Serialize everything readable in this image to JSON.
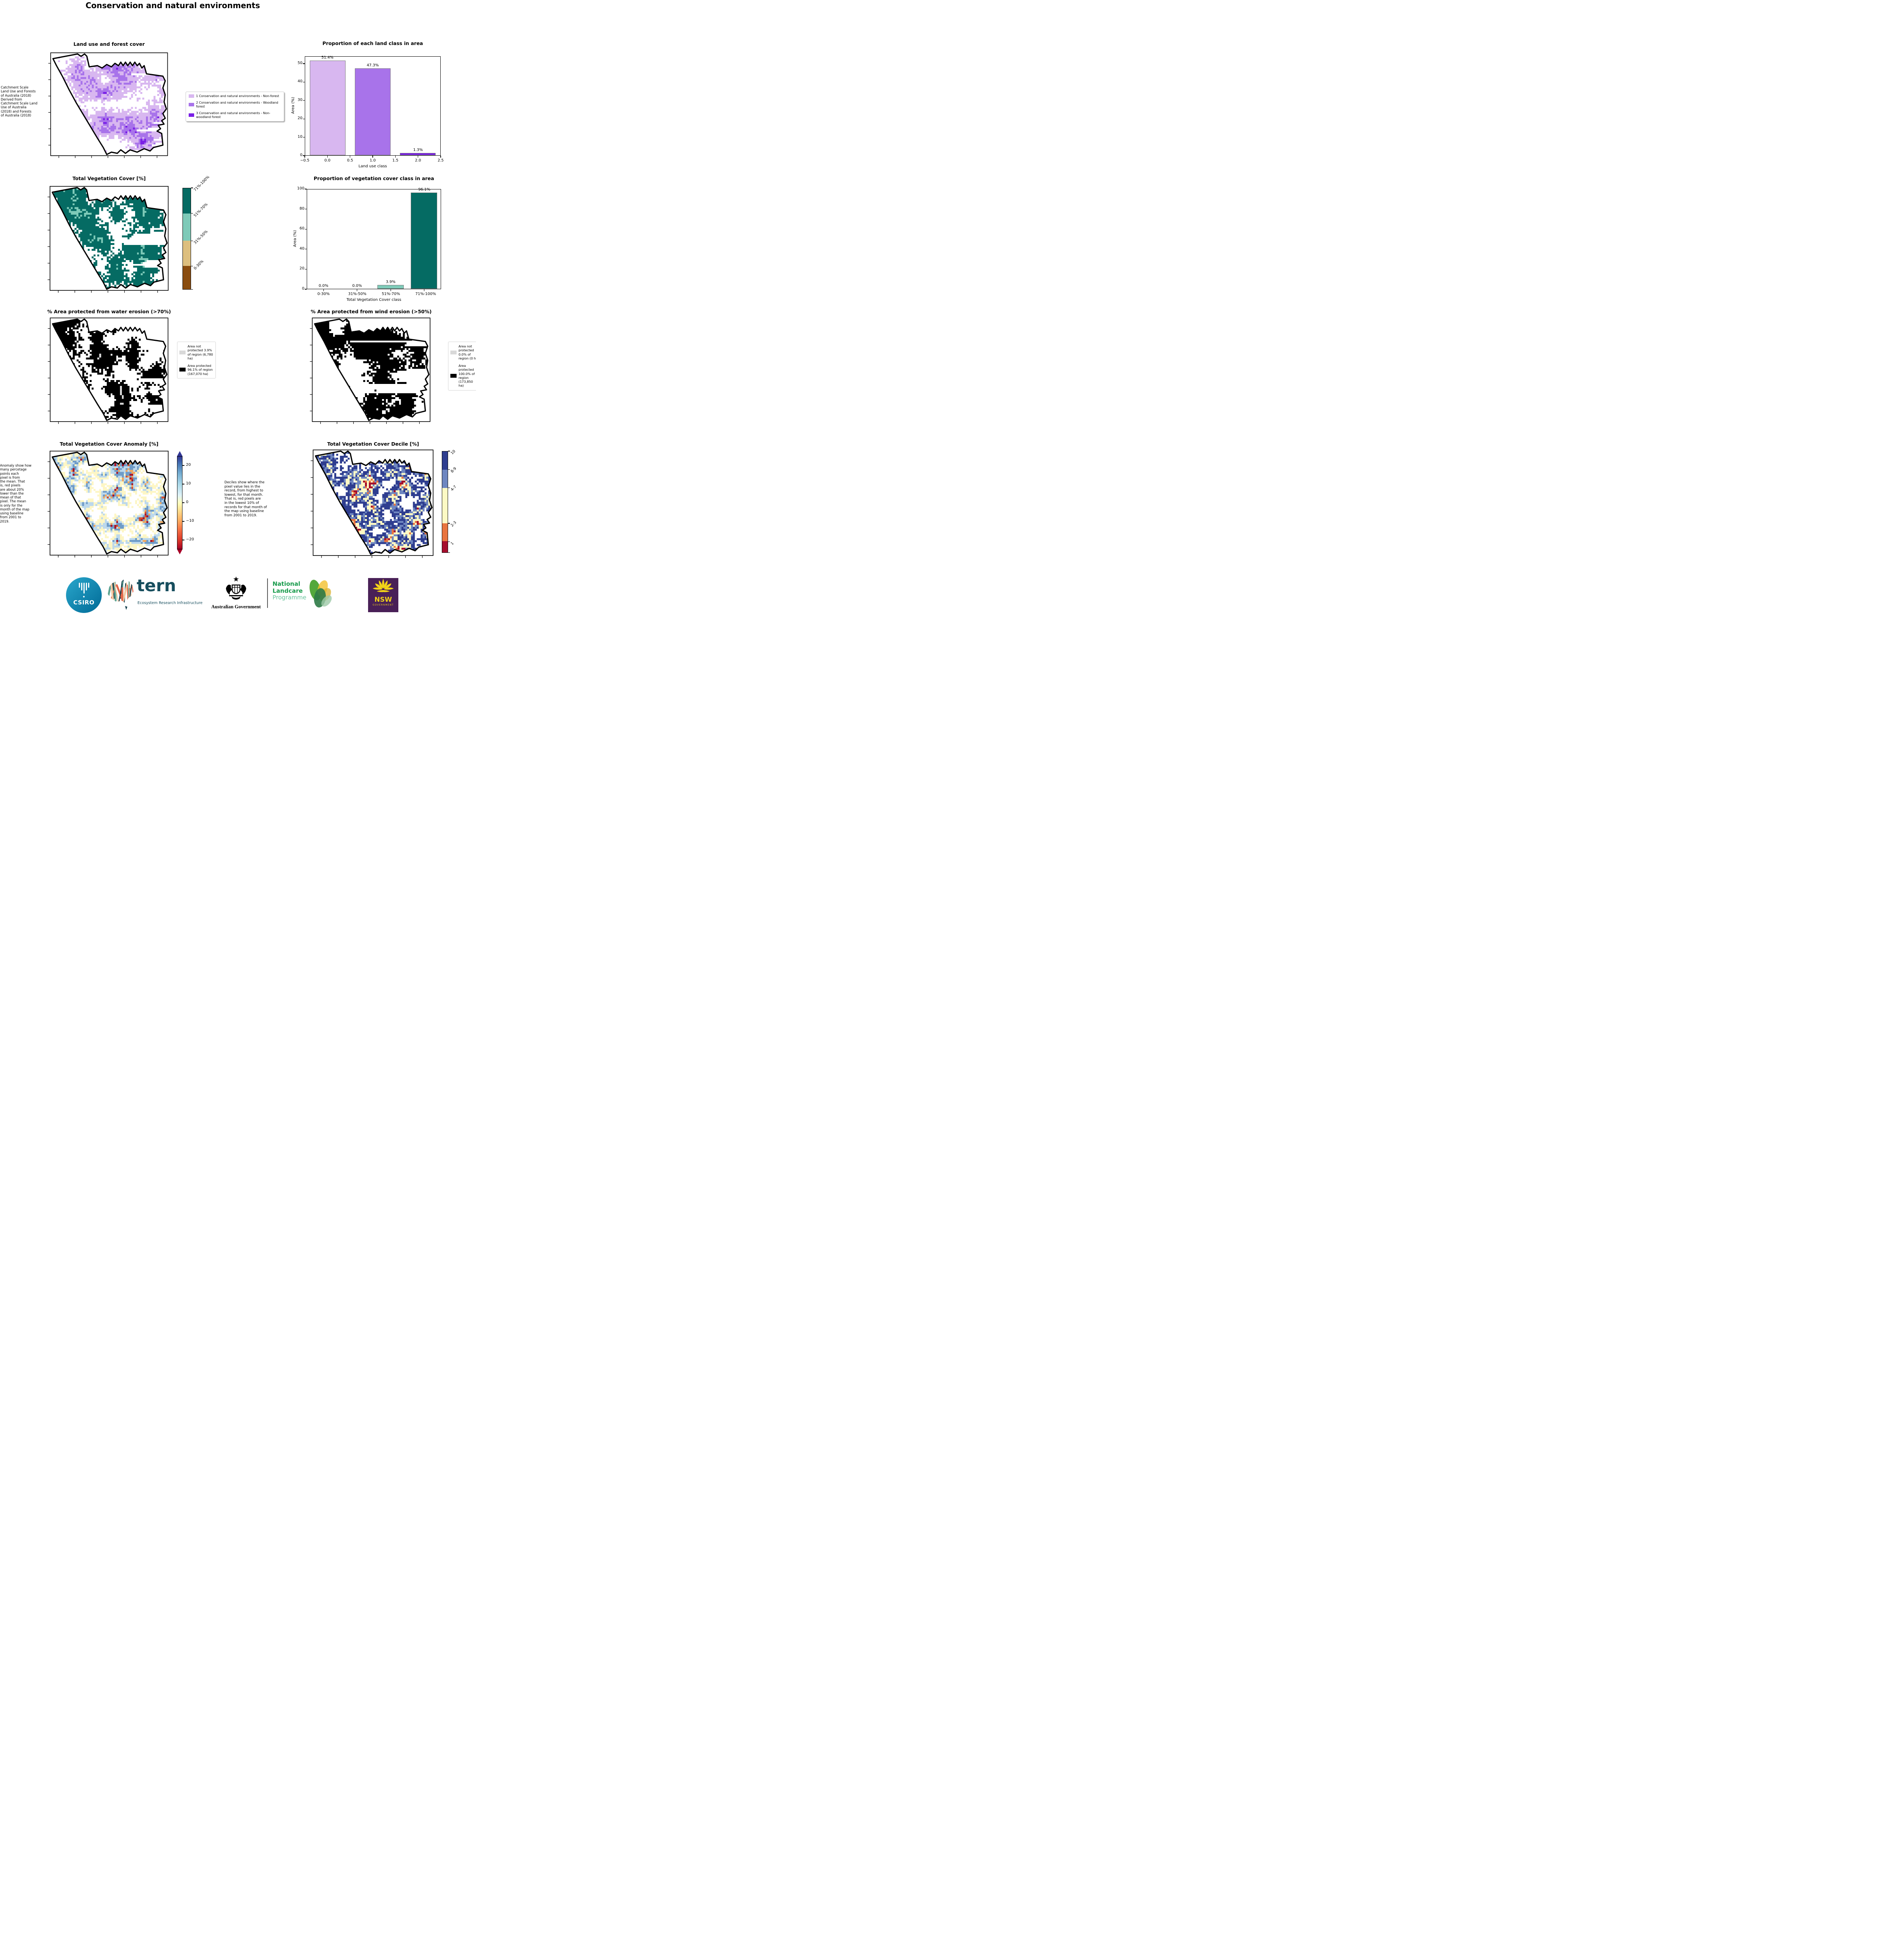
{
  "page": {
    "title": "Conservation and natural environments"
  },
  "chart_data": [
    {
      "type": "bar",
      "title": "Proportion of each land class in area",
      "xlabel": "Land use class",
      "ylabel": "Area (%)",
      "x_centers": [
        0,
        1,
        2
      ],
      "values": [
        51.4,
        47.3,
        1.3
      ],
      "bar_labels": [
        "51.4%",
        "47.3%",
        "1.3%"
      ],
      "bar_colors": [
        "#d8b7f0",
        "#a873ea",
        "#7a1fe6"
      ],
      "bar_width": 0.8,
      "xlim": [
        -0.5,
        2.5
      ],
      "ylim": [
        0,
        54
      ],
      "xticks": [
        "−0.5",
        "0.0",
        "0.5",
        "1.0",
        "1.5",
        "2.0",
        "2.5"
      ],
      "yticks": [
        0,
        10,
        20,
        30,
        40,
        50
      ],
      "grid": false,
      "legend_position": "none"
    },
    {
      "type": "bar",
      "title": "Proportion of vegetation cover class in area",
      "xlabel": "Total Vegetation Cover class",
      "ylabel": "Area (%)",
      "categories": [
        "0-30%",
        "31%-50%",
        "51%-70%",
        "71%-100%"
      ],
      "values": [
        0.0,
        0.0,
        3.9,
        96.1
      ],
      "bar_labels": [
        "0.0%",
        "0.0%",
        "3.9%",
        "96.1%"
      ],
      "bar_colors": [
        "#8a4d10",
        "#ddbf7f",
        "#7ecab8",
        "#056b63"
      ],
      "bar_width": 0.8,
      "ylim": [
        0,
        100
      ],
      "yticks": [
        0,
        20,
        40,
        60,
        80,
        100
      ],
      "grid": false,
      "legend_position": "none"
    }
  ],
  "panels": {
    "landuse": {
      "title": "Land use and forest cover",
      "note": " Catchment Scale\nLand Use and Forests\nof Australia (2018)\nDerived from\nCatchment Scale Land\nUse of Australia\n(2018) and Forests\nof Australia (2018)",
      "legend": [
        {
          "label": "1 Conservation and natural environments - Non-forest",
          "color": "#d8b7f0"
        },
        {
          "label": "2 Conservation and natural environments - Woodland forest",
          "color": "#a873ea"
        },
        {
          "label": "3 Conservation and natural environments - Non-woodland forest",
          "color": "#7a1fe6"
        }
      ],
      "map_palette": [
        {
          "color": "#ffffff",
          "weight": 38
        },
        {
          "color": "#d8b7f0",
          "weight": 34
        },
        {
          "color": "#a873ea",
          "weight": 26
        },
        {
          "color": "#7a1fe6",
          "weight": 2
        }
      ]
    },
    "vegcover": {
      "title": "Total Vegetation Cover [%]",
      "colorbar": [
        {
          "label": "71%-100%",
          "color": "#056b63",
          "height": 25
        },
        {
          "label": "51%-70%",
          "color": "#7ecab8",
          "height": 27
        },
        {
          "label": "31%-50%",
          "color": "#ddbf7f",
          "height": 25
        },
        {
          "label": "0-30%",
          "color": "#8a4d10",
          "height": 23
        }
      ],
      "map_palette": [
        {
          "color": "#ffffff",
          "weight": 36
        },
        {
          "color": "#056b63",
          "weight": 57
        },
        {
          "color": "#7ecab8",
          "weight": 7
        }
      ]
    },
    "water": {
      "title": "% Area protected from water erosion (>70%)",
      "legend": [
        {
          "label": "Area not protected 3.9% of region (6,780 ha)",
          "color": "#d9d9d9"
        },
        {
          "label": "Area protected 96.1% of region (167,070 ha)",
          "color": "#000000"
        }
      ],
      "map_palette": [
        {
          "color": "#ffffff",
          "weight": 44
        },
        {
          "color": "#000000",
          "weight": 52
        },
        {
          "color": "#d9d9d9",
          "weight": 4
        }
      ]
    },
    "wind": {
      "title": "% Area protected from wind erosion (>50%)",
      "legend": [
        {
          "label": "Area not protected 0.0% of region (0 ha)",
          "color": "#d9d9d9"
        },
        {
          "label": "Area protected 100.0% of region (173,850 ha)",
          "color": "#000000"
        }
      ],
      "map_palette": [
        {
          "color": "#ffffff",
          "weight": 42
        },
        {
          "color": "#000000",
          "weight": 58
        }
      ]
    },
    "anomaly": {
      "title": "Total Vegetation Cover Anomaly [%]",
      "note": "Anomaly show how\nmany percetage\npoints each\npixel is from\nthe mean. That\nis, red pixels\nare about 20%\nlower than the\nmean of that\npixel. The mean\nis only for the\nmonth of the map\nusing baseline\nfrom 2001 to\n2019.",
      "colorbar_ticks": [
        {
          "label": "20",
          "value": 20
        },
        {
          "label": "10",
          "value": 10
        },
        {
          "label": "0",
          "value": 0
        },
        {
          "label": "−10",
          "value": -10
        },
        {
          "label": "−20",
          "value": -20
        }
      ],
      "map_palette": [
        {
          "color": "#ffffff",
          "weight": 40
        },
        {
          "color": "#fdf6c5",
          "weight": 18
        },
        {
          "color": "#bcd8ec",
          "weight": 17
        },
        {
          "color": "#6f9cc8",
          "weight": 13
        },
        {
          "color": "#f0a860",
          "weight": 7
        },
        {
          "color": "#d4502f",
          "weight": 3
        },
        {
          "color": "#a81428",
          "weight": 2
        }
      ]
    },
    "decile": {
      "title": "Total Vegetation Cover Decile [%]",
      "note": "Deciles show where the\npixel value lies in the\nrecord, from highest to\nlowest, for that month.\nThat is, red pixels are\nin the lowest 10% of\nrecords for that month of\nthe map using baseline\nfrom 2001 to 2019.",
      "colorbar": [
        {
          "label": "10",
          "color": "#2e3d8f",
          "height": 18
        },
        {
          "label": "8-9",
          "color": "#6e86c0",
          "height": 18
        },
        {
          "label": "4-7",
          "color": "#fdf9c4",
          "height": 35
        },
        {
          "label": "2-3",
          "color": "#e8743f",
          "height": 18
        },
        {
          "label": "1",
          "color": "#a50e2d",
          "height": 11
        }
      ],
      "map_palette": [
        {
          "color": "#ffffff",
          "weight": 38
        },
        {
          "color": "#2e3d8f",
          "weight": 22
        },
        {
          "color": "#6e86c0",
          "weight": 12
        },
        {
          "color": "#fdf9c4",
          "weight": 17
        },
        {
          "color": "#e8743f",
          "weight": 7
        },
        {
          "color": "#a50e2d",
          "weight": 4
        }
      ]
    }
  },
  "footer": {
    "csiro_label": "CSIRO",
    "tern_name": "tern",
    "tern_subtitle": "Ecosystem Research Infrastructure",
    "aus_gov_label": "Australian Government",
    "landcare_lines": [
      "National",
      "Landcare",
      "Programme"
    ],
    "nsw_name": "NSW",
    "nsw_sub": "GOVERNMENT"
  }
}
